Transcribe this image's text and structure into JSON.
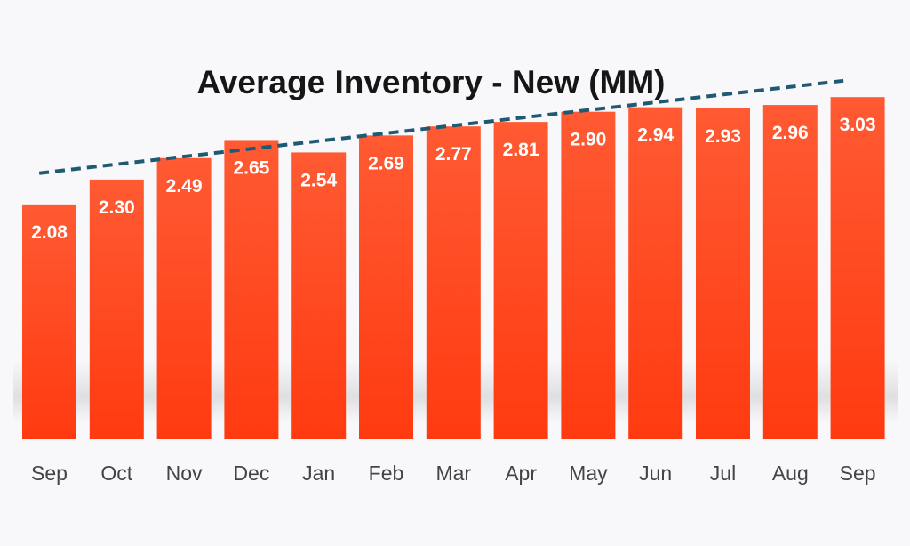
{
  "chart_data": {
    "type": "bar",
    "title": "Average Inventory - New (MM)",
    "xlabel": "",
    "ylabel": "",
    "categories": [
      "Sep",
      "Oct",
      "Nov",
      "Dec",
      "Jan",
      "Feb",
      "Mar",
      "Apr",
      "May",
      "Jun",
      "Jul",
      "Aug",
      "Sep"
    ],
    "values": [
      2.08,
      2.3,
      2.49,
      2.65,
      2.54,
      2.69,
      2.77,
      2.81,
      2.9,
      2.94,
      2.93,
      2.96,
      3.03
    ],
    "data_labels": [
      "2.08",
      "2.30",
      "2.49",
      "2.65",
      "2.54",
      "2.69",
      "2.77",
      "2.81",
      "2.90",
      "2.94",
      "2.93",
      "2.96",
      "3.03"
    ],
    "trendline": {
      "style": "dashed",
      "type": "linear",
      "color": "#1f5a73"
    },
    "bar_color_top": "#ff5a33",
    "bar_color_bottom": "#ff3a10",
    "legend": "none",
    "grid": false
  }
}
